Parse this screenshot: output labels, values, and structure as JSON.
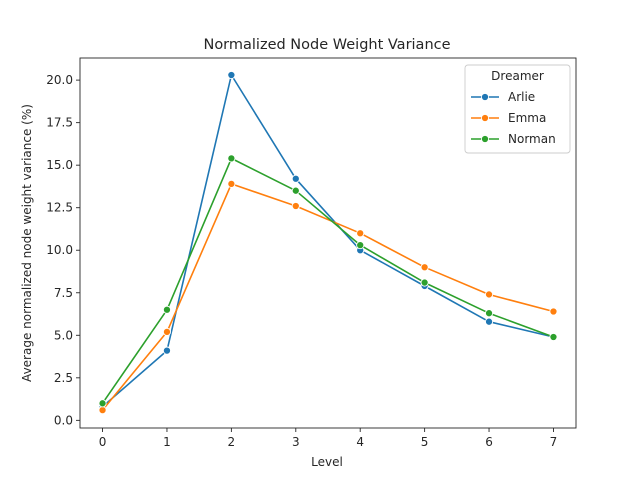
{
  "chart_data": {
    "type": "line",
    "title": "Normalized Node Weight Variance",
    "xlabel": "Level",
    "ylabel": "Average normalized node weight variance (%)",
    "x": [
      0,
      1,
      2,
      3,
      4,
      5,
      6,
      7
    ],
    "x_ticks": [
      "0",
      "1",
      "2",
      "3",
      "4",
      "5",
      "6",
      "7"
    ],
    "y_ticks": [
      "0.0",
      "2.5",
      "5.0",
      "7.5",
      "10.0",
      "12.5",
      "15.0",
      "17.5",
      "20.0"
    ],
    "xlim": [
      -0.35,
      7.35
    ],
    "ylim": [
      -0.45,
      21.3
    ],
    "grid": false,
    "legend": {
      "title": "Dreamer",
      "placement": "top-right"
    },
    "series": [
      {
        "name": "Arlie",
        "color": "#1f77b4",
        "values": [
          0.8,
          4.1,
          20.3,
          14.2,
          10.0,
          7.9,
          5.8,
          4.9
        ]
      },
      {
        "name": "Emma",
        "color": "#ff7f0e",
        "values": [
          0.6,
          5.2,
          13.9,
          12.6,
          11.0,
          9.0,
          7.4,
          6.4
        ]
      },
      {
        "name": "Norman",
        "color": "#2ca02c",
        "values": [
          1.0,
          6.5,
          15.4,
          13.5,
          10.3,
          8.1,
          6.3,
          4.9
        ]
      }
    ]
  }
}
